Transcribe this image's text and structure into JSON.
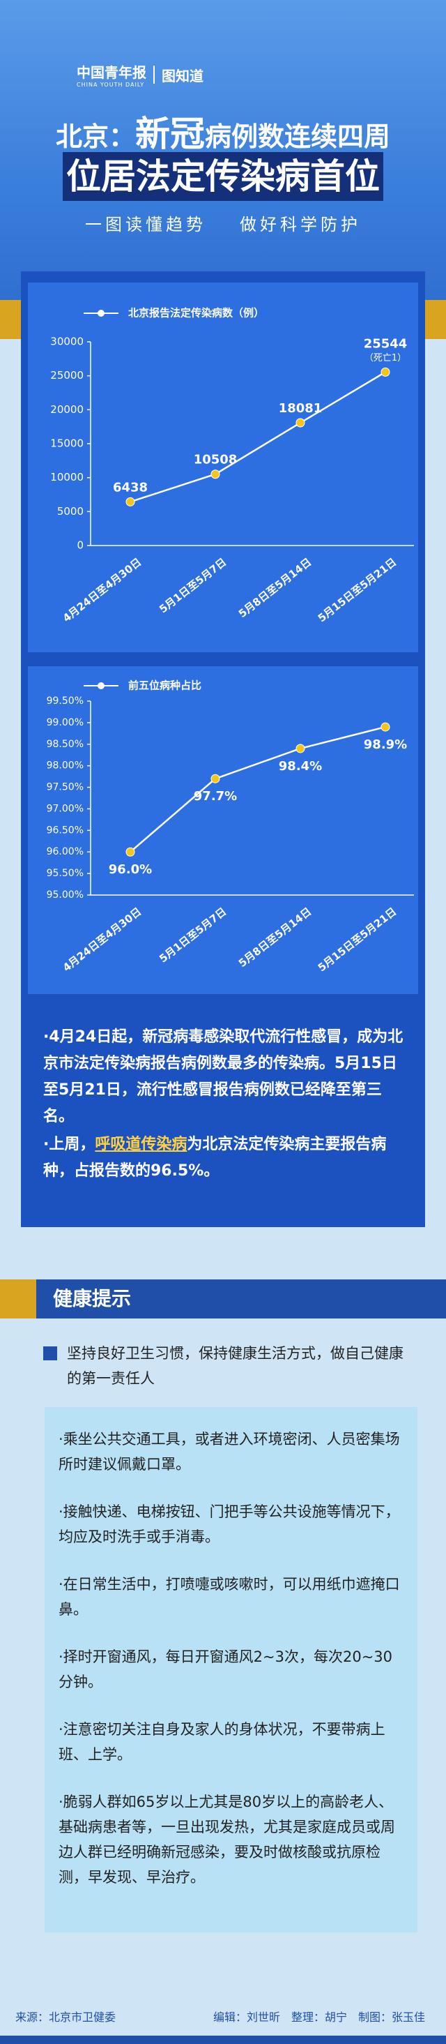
{
  "header": {
    "logo": "中国青年报",
    "logo_en": "CHINA YOUTH DAILY",
    "brand": "图知道",
    "title_a": "北京：",
    "title_b": "新冠",
    "title_c": "病例数连续四周",
    "title_line2": "位居法定传染病首位",
    "subtitle": [
      "一图读懂趋势",
      "做好科学防护"
    ]
  },
  "chart_data": [
    {
      "type": "line",
      "categories": [
        "4月24日至4月30日",
        "5月1日至5月7日",
        "5月8日至5月14日",
        "5月15日至5月21日"
      ],
      "series": [
        {
          "name": "北京报告法定传染病数（例）",
          "color": "#ffffff",
          "marker_color": "#f5c518",
          "values": [
            6438,
            10508,
            18081,
            25544
          ]
        }
      ],
      "annotation": "（死亡1）",
      "ylim": [
        0,
        30000
      ],
      "yticks": [
        0,
        5000,
        10000,
        15000,
        20000,
        25000,
        30000
      ],
      "grid": false
    },
    {
      "type": "line",
      "categories": [
        "4月24日至4月30日",
        "5月1日至5月7日",
        "5月8日至5月14日",
        "5月15日至5月21日"
      ],
      "series": [
        {
          "name": "前五位病种占比",
          "color": "#ffffff",
          "marker_color": "#f5c518",
          "values": [
            96.0,
            97.7,
            98.4,
            98.9
          ],
          "value_labels": [
            "96.0%",
            "97.7%",
            "98.4%",
            "98.9%"
          ]
        }
      ],
      "ylim": [
        95,
        99.5
      ],
      "yticks": [
        {
          "value": 95,
          "label": "95.00%"
        },
        {
          "value": 95.5,
          "label": "95.50%"
        },
        {
          "value": 96,
          "label": "96.00%"
        },
        {
          "value": 96.5,
          "label": "96.50%"
        },
        {
          "value": 97,
          "label": "97.00%"
        },
        {
          "value": 97.5,
          "label": "97.50%"
        },
        {
          "value": 98,
          "label": "98.00%"
        },
        {
          "value": 98.5,
          "label": "98.50%"
        },
        {
          "value": 99,
          "label": "99.00%"
        },
        {
          "value": 99.5,
          "label": "99.50%"
        }
      ],
      "grid": false
    }
  ],
  "notes": [
    "·4月24日起，新冠病毒感染取代流行性感冒，成为北京市法定传染病报告病例数最多的传染病。5月15日至5月21日，流行性感冒报告病例数已经降至第三名。",
    {
      "before": "·上周，",
      "highlight": "呼吸道传染病",
      "after": "为北京法定传染病主要报告病种，占报告数的96.5%。"
    }
  ],
  "health": {
    "title": "健康提示",
    "intro": "坚持良好卫生习惯，保持健康生活方式，做自己健康的第一责任人",
    "tips": [
      "·乘坐公共交通工具，或者进入环境密闭、人员密集场所时建议佩戴口罩。",
      "·接触快递、电梯按钮、门把手等公共设施等情况下，均应及时洗手或手消毒。",
      "·在日常生活中，打喷嚏或咳嗽时，可以用纸巾遮掩口鼻。",
      "·择时开窗通风，每日开窗通风2~3次，每次20~30分钟。",
      "·注意密切关注自身及家人的身体状况，不要带病上班、上学。",
      "·脆弱人群如65岁以上尤其是80岁以上的高龄老人、基础病患者等，一旦出现发热，尤其是家庭成员或周边人群已经明确新冠感染，要及时做核酸或抗原检测，早发现、早治疗。"
    ]
  },
  "footer": {
    "source": "来源：北京市卫健委",
    "credits": [
      "编辑：刘世昕",
      "整理：胡宁",
      "制图：张玉佳"
    ]
  }
}
